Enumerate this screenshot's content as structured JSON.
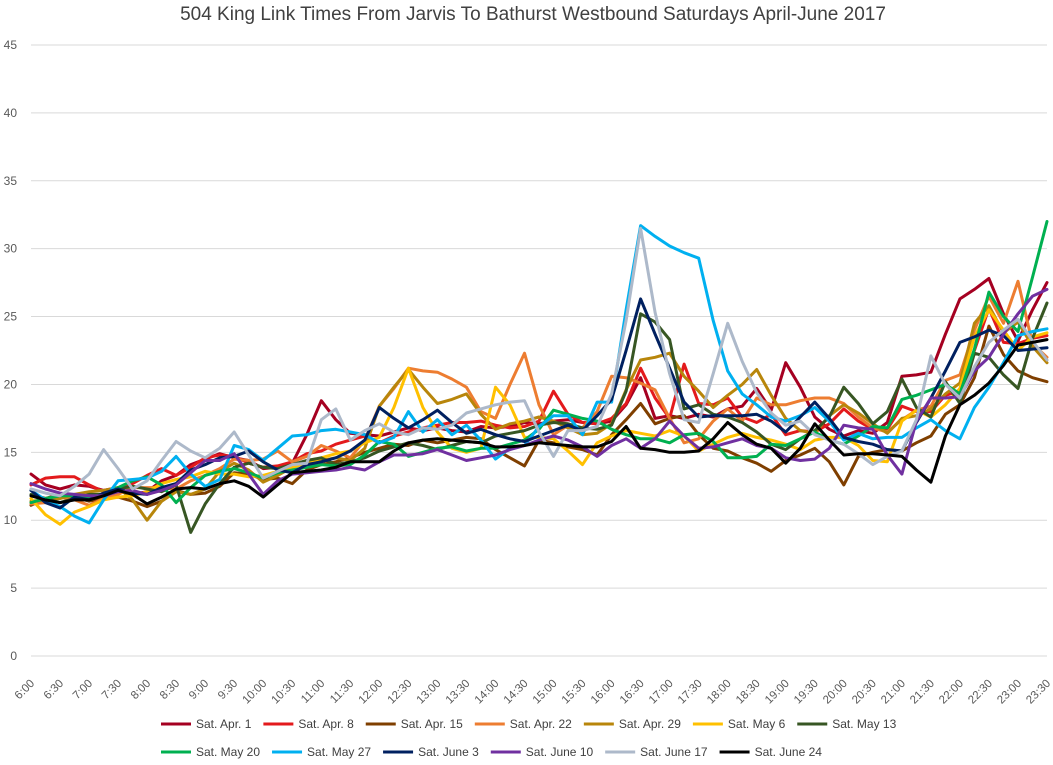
{
  "chart_data": {
    "type": "line",
    "title": "504 King Link Times From Jarvis To Bathurst Westbound Saturdays April-June 2017",
    "xlabel": "",
    "ylabel": "",
    "ylim": [
      0,
      45
    ],
    "yticks": [
      "0",
      "5",
      "10",
      "15",
      "20",
      "25",
      "30",
      "35",
      "40",
      "45"
    ],
    "grid": true,
    "legend_position": "bottom",
    "categories": [
      "6:00",
      "6:30",
      "7:00",
      "7:30",
      "8:00",
      "8:30",
      "9:00",
      "9:30",
      "10:00",
      "10:30",
      "11:00",
      "11:30",
      "12:00",
      "12:30",
      "13:00",
      "13:30",
      "14:00",
      "14:30",
      "15:00",
      "15:30",
      "16:00",
      "16:30",
      "17:00",
      "17:30",
      "18:00",
      "18:30",
      "19:00",
      "19:30",
      "20:00",
      "20:30",
      "21:00",
      "21:30",
      "22:00",
      "22:30",
      "23:00",
      "23:30"
    ],
    "x": [
      6.0,
      6.25,
      6.5,
      6.75,
      7.0,
      7.25,
      7.5,
      7.75,
      8.0,
      8.25,
      8.5,
      8.75,
      9.0,
      9.25,
      9.5,
      9.75,
      10.0,
      10.25,
      10.5,
      10.75,
      11.0,
      11.25,
      11.5,
      11.75,
      12.0,
      12.25,
      12.5,
      12.75,
      13.0,
      13.25,
      13.5,
      13.75,
      14.0,
      14.25,
      14.5,
      14.75,
      15.0,
      15.25,
      15.5,
      15.75,
      16.0,
      16.25,
      16.5,
      16.75,
      17.0,
      17.25,
      17.5,
      17.75,
      18.0,
      18.25,
      18.5,
      18.75,
      19.0,
      19.25,
      19.5,
      19.75,
      20.0,
      20.25,
      20.5,
      20.75,
      21.0,
      21.25,
      21.5,
      21.75,
      22.0,
      22.25,
      22.5,
      22.75,
      23.0,
      23.25,
      23.5
    ],
    "series": [
      {
        "name": "Sat. Apr. 1",
        "color": "#a50021",
        "values": [
          13.4,
          12.6,
          12.3,
          12.6,
          12.5,
          12.2,
          12.4,
          11.9,
          12.1,
          12.9,
          13.3,
          14.1,
          14.5,
          14.9,
          14.6,
          14.4,
          13.8,
          13.9,
          14.2,
          16.3,
          18.8,
          17.4,
          16.4,
          16.3,
          16.2,
          16.5,
          16.8,
          16.6,
          16.8,
          16.6,
          16.5,
          16.9,
          16.8,
          16.9,
          17.2,
          17.1,
          17.3,
          17.4,
          17.2,
          17.1,
          17.3,
          18.5,
          20.5,
          17.5,
          17.7,
          17.5,
          17.8,
          17.6,
          18.2,
          18.4,
          19.7,
          18.1,
          21.6,
          19.8,
          17.6,
          16.7,
          16.2,
          16.6,
          16.4,
          17.2,
          20.6,
          20.7,
          20.9,
          23.7,
          26.3,
          27.0,
          27.8,
          25.2,
          23.2,
          25.5,
          27.5
        ]
      },
      {
        "name": "Sat. Apr. 8",
        "color": "#e31a1c",
        "values": [
          12.6,
          13.1,
          13.2,
          13.2,
          12.6,
          12.1,
          12.2,
          12.7,
          13.3,
          13.8,
          13.3,
          13.9,
          14.6,
          14.8,
          14.7,
          14.2,
          13.9,
          14.0,
          14.3,
          14.9,
          15.1,
          15.6,
          15.9,
          16.2,
          15.7,
          16.2,
          16.5,
          16.8,
          17.0,
          17.2,
          17.2,
          17.3,
          17.0,
          16.8,
          16.9,
          17.3,
          19.5,
          17.8,
          17.2,
          17.1,
          17.5,
          18.6,
          21.2,
          19.0,
          17.5,
          21.5,
          18.6,
          18.5,
          19.0,
          17.6,
          17.2,
          17.8,
          16.3,
          16.6,
          16.5,
          17.1,
          18.2,
          17.3,
          16.7,
          16.7,
          18.4,
          18.0,
          18.0,
          19.2,
          19.5,
          22.5,
          25.6,
          23.1,
          23.0,
          23.4,
          23.6
        ]
      },
      {
        "name": "Sat. Apr. 15",
        "color": "#7f3f00",
        "values": [
          11.1,
          11.6,
          11.9,
          11.7,
          11.4,
          11.6,
          11.7,
          11.4,
          11.0,
          11.4,
          12.2,
          11.9,
          12.0,
          12.5,
          13.5,
          13.4,
          13.0,
          13.1,
          12.7,
          13.7,
          14.1,
          14.3,
          14.6,
          15.0,
          15.3,
          15.6,
          15.5,
          15.9,
          15.7,
          15.9,
          16.1,
          16.0,
          15.2,
          14.6,
          14.0,
          15.9,
          15.7,
          15.4,
          15.2,
          14.8,
          16.3,
          17.4,
          18.6,
          17.1,
          17.5,
          17.7,
          16.3,
          15.3,
          15.1,
          14.6,
          14.2,
          13.6,
          14.4,
          14.8,
          15.3,
          14.3,
          12.6,
          14.7,
          15.0,
          15.2,
          15.1,
          15.7,
          16.2,
          17.8,
          18.5,
          20.5,
          24.3,
          22.2,
          21.0,
          20.5,
          20.2
        ]
      },
      {
        "name": "Sat. Apr. 22",
        "color": "#ed7d31",
        "values": [
          11.2,
          11.3,
          11.7,
          11.5,
          11.1,
          11.6,
          11.9,
          12.4,
          12.4,
          12.4,
          12.3,
          12.9,
          13.3,
          13.8,
          14.5,
          14.4,
          14.5,
          15.1,
          14.3,
          14.7,
          15.5,
          15.1,
          14.6,
          15.9,
          18.4,
          19.7,
          21.2,
          21.0,
          20.9,
          20.4,
          19.8,
          18.0,
          17.5,
          20.0,
          22.3,
          18.5,
          16.3,
          17.0,
          16.8,
          18.0,
          20.6,
          20.5,
          20.1,
          19.6,
          17.5,
          15.7,
          16.0,
          17.3,
          18.2,
          17.3,
          19.0,
          18.5,
          18.5,
          18.8,
          19.0,
          19.0,
          18.6,
          17.6,
          16.8,
          16.5,
          17.4,
          18.1,
          18.4,
          20.3,
          20.7,
          24.0,
          26.5,
          24.5,
          27.6,
          23.0,
          22.0
        ]
      },
      {
        "name": "Sat. Apr. 29",
        "color": "#b8860b",
        "values": [
          11.4,
          11.5,
          11.6,
          11.9,
          12.1,
          12.2,
          12.4,
          11.5,
          10.0,
          11.4,
          12.1,
          11.9,
          12.3,
          13.6,
          14.2,
          13.7,
          12.8,
          13.3,
          13.9,
          14.3,
          14.4,
          14.6,
          14.4,
          15.3,
          18.4,
          19.8,
          21.1,
          19.8,
          18.6,
          18.9,
          19.3,
          17.8,
          16.7,
          17.1,
          17.3,
          17.6,
          17.3,
          16.8,
          16.3,
          16.4,
          17.1,
          19.6,
          21.8,
          22.0,
          22.3,
          20.6,
          19.5,
          18.3,
          19.2,
          20.0,
          21.1,
          19.2,
          17.5,
          16.6,
          16.4,
          17.7,
          18.5,
          17.9,
          17.1,
          16.4,
          17.5,
          17.7,
          18.2,
          19.3,
          20.1,
          24.5,
          25.8,
          23.8,
          24.6,
          22.8,
          21.6
        ]
      },
      {
        "name": "Sat. May 6",
        "color": "#ffc000",
        "values": [
          11.6,
          10.4,
          9.7,
          10.6,
          11.0,
          11.5,
          11.7,
          11.8,
          12.1,
          12.7,
          13.0,
          13.2,
          13.6,
          13.4,
          13.4,
          13.2,
          13.3,
          13.6,
          13.9,
          14.2,
          14.6,
          14.9,
          15.1,
          15.7,
          16.1,
          18.3,
          21.2,
          18.3,
          16.5,
          15.3,
          15.0,
          15.3,
          19.8,
          18.5,
          16.1,
          16.1,
          16.0,
          15.1,
          14.1,
          15.7,
          16.2,
          16.6,
          16.4,
          16.2,
          16.6,
          16.2,
          15.1,
          15.6,
          16.1,
          16.4,
          16.1,
          15.9,
          15.6,
          15.2,
          15.9,
          16.1,
          16.1,
          15.5,
          14.4,
          14.3,
          17.3,
          18.1,
          17.6,
          18.5,
          19.7,
          23.5,
          25.5,
          24.0,
          22.5,
          23.5,
          23.8
        ]
      },
      {
        "name": "Sat. May 13",
        "color": "#375623",
        "values": [
          11.9,
          11.6,
          11.3,
          11.6,
          11.9,
          11.9,
          12.3,
          12.5,
          12.3,
          12.1,
          12.6,
          9.1,
          11.2,
          12.7,
          13.9,
          14.2,
          13.9,
          13.8,
          14.1,
          14.4,
          14.6,
          14.1,
          14.3,
          14.6,
          15.1,
          15.4,
          15.7,
          15.5,
          15.2,
          15.5,
          15.8,
          15.7,
          16.2,
          16.4,
          16.6,
          17.0,
          17.2,
          17.1,
          16.8,
          16.7,
          17.0,
          19.5,
          25.2,
          24.6,
          23.3,
          18.2,
          18.5,
          17.8,
          17.6,
          17.2,
          16.5,
          15.6,
          15.2,
          16.0,
          16.6,
          17.6,
          19.8,
          18.6,
          17.1,
          18.0,
          20.4,
          18.3,
          17.6,
          20.2,
          18.6,
          22.3,
          22.0,
          20.7,
          19.7,
          23.4,
          26.0
        ]
      },
      {
        "name": "Sat. May 20",
        "color": "#00b050",
        "values": [
          11.3,
          11.6,
          11.8,
          11.8,
          11.7,
          11.9,
          12.4,
          12.9,
          13.2,
          12.6,
          11.3,
          12.4,
          13.3,
          13.6,
          13.8,
          13.5,
          13.1,
          13.5,
          13.7,
          13.9,
          14.1,
          14.0,
          14.1,
          14.8,
          15.8,
          15.6,
          14.7,
          15.0,
          15.3,
          15.4,
          15.1,
          15.3,
          15.3,
          15.6,
          15.9,
          16.7,
          18.1,
          17.8,
          17.5,
          17.3,
          16.7,
          16.3,
          16.0,
          16.0,
          15.7,
          16.3,
          16.4,
          15.8,
          14.6,
          14.6,
          14.7,
          15.6,
          15.5,
          16.0,
          16.5,
          15.9,
          15.6,
          16.2,
          16.9,
          16.8,
          18.9,
          19.2,
          19.6,
          20.0,
          19.3,
          22.6,
          26.8,
          25.0,
          23.9,
          27.9,
          32.0
        ]
      },
      {
        "name": "Sat. May 27",
        "color": "#00b0f0",
        "values": [
          12.2,
          11.5,
          11.0,
          10.3,
          9.8,
          11.5,
          12.9,
          13.0,
          13.1,
          13.6,
          14.7,
          13.4,
          12.5,
          13.0,
          15.5,
          15.2,
          14.4,
          15.3,
          16.2,
          16.3,
          16.6,
          16.7,
          16.5,
          16.3,
          15.7,
          16.1,
          18.0,
          16.5,
          17.4,
          16.3,
          17.0,
          15.9,
          14.5,
          15.3,
          15.5,
          16.9,
          17.7,
          17.7,
          16.3,
          18.7,
          18.7,
          25.5,
          31.7,
          30.9,
          30.2,
          29.7,
          29.3,
          24.7,
          21.0,
          19.3,
          18.5,
          17.6,
          17.3,
          17.7,
          18.3,
          17.3,
          15.9,
          16.4,
          16.0,
          16.1,
          16.1,
          16.8,
          17.4,
          16.6,
          16.0,
          18.3,
          19.8,
          21.6,
          23.6,
          23.9,
          24.1
        ]
      },
      {
        "name": "Sat. June 3",
        "color": "#002060",
        "values": [
          12.2,
          11.3,
          10.9,
          11.7,
          11.5,
          12.0,
          12.3,
          12.0,
          11.9,
          12.4,
          12.7,
          13.7,
          14.1,
          14.6,
          14.7,
          15.1,
          14.3,
          13.7,
          13.5,
          14.1,
          14.3,
          14.6,
          15.1,
          15.9,
          18.3,
          17.5,
          16.8,
          17.4,
          18.1,
          17.2,
          16.4,
          16.7,
          16.3,
          16.0,
          15.8,
          16.2,
          16.6,
          17.0,
          16.6,
          17.7,
          18.9,
          22.5,
          26.3,
          23.7,
          21.2,
          18.7,
          17.6,
          17.7,
          17.7,
          17.7,
          17.8,
          17.3,
          16.5,
          17.6,
          18.7,
          17.5,
          16.1,
          15.8,
          15.6,
          15.2,
          15.1,
          17.2,
          19.0,
          21.0,
          23.1,
          23.5,
          24.0,
          23.6,
          22.5,
          22.6,
          22.7
        ]
      },
      {
        "name": "Sat. June 10",
        "color": "#7030a0",
        "values": [
          12.7,
          12.3,
          12.0,
          11.9,
          11.8,
          11.8,
          12.1,
          12.2,
          11.9,
          12.2,
          12.6,
          13.5,
          14.4,
          14.4,
          14.9,
          13.4,
          11.9,
          12.9,
          13.4,
          13.5,
          13.6,
          13.7,
          13.9,
          13.7,
          14.3,
          14.8,
          14.8,
          14.9,
          15.2,
          14.8,
          14.4,
          14.6,
          14.8,
          15.2,
          15.5,
          15.9,
          16.2,
          15.9,
          15.4,
          14.7,
          15.5,
          16.0,
          15.3,
          16.0,
          17.3,
          16.2,
          15.3,
          15.4,
          15.7,
          16.0,
          15.5,
          15.3,
          14.6,
          14.4,
          14.5,
          15.3,
          17.0,
          16.8,
          16.7,
          14.8,
          13.4,
          17.3,
          19.0,
          19.0,
          19.1,
          21.0,
          22.0,
          23.7,
          25.2,
          26.5,
          27.0
        ]
      },
      {
        "name": "Sat. June 17",
        "color": "#adb9ca",
        "values": [
          12.3,
          12.0,
          11.8,
          12.5,
          13.4,
          15.2,
          13.8,
          12.3,
          12.9,
          14.4,
          15.8,
          15.1,
          14.6,
          15.3,
          16.5,
          14.8,
          13.1,
          13.6,
          14.1,
          14.2,
          17.4,
          18.2,
          15.9,
          16.6,
          17.1,
          16.5,
          16.3,
          16.8,
          16.7,
          17.0,
          17.9,
          18.2,
          18.5,
          18.7,
          18.8,
          16.5,
          14.7,
          16.6,
          16.6,
          16.9,
          19.3,
          24.7,
          31.5,
          25.3,
          20.8,
          17.4,
          17.2,
          20.8,
          24.5,
          21.7,
          19.4,
          17.9,
          17.0,
          17.3,
          16.3,
          15.9,
          15.6,
          14.9,
          14.1,
          14.7,
          15.1,
          17.4,
          22.1,
          20.0,
          19.0,
          21.3,
          23.1,
          24.0,
          24.8,
          23.2,
          21.8
        ]
      },
      {
        "name": "Sat. June 24",
        "color": "#000000",
        "values": [
          11.8,
          11.5,
          11.3,
          11.5,
          11.5,
          11.8,
          12.2,
          11.9,
          11.2,
          11.7,
          12.3,
          12.4,
          12.3,
          12.7,
          12.9,
          12.5,
          11.7,
          12.6,
          13.5,
          13.6,
          13.7,
          13.9,
          14.3,
          14.3,
          14.3,
          15.1,
          15.7,
          15.9,
          16.0,
          15.9,
          15.8,
          15.7,
          15.4,
          15.4,
          15.5,
          15.7,
          15.6,
          15.5,
          15.4,
          15.4,
          15.8,
          16.9,
          15.3,
          15.2,
          15.0,
          15.0,
          15.1,
          16.0,
          17.2,
          16.3,
          15.6,
          15.3,
          14.2,
          15.3,
          17.1,
          15.9,
          14.8,
          14.9,
          14.9,
          14.8,
          14.7,
          13.7,
          12.8,
          16.2,
          18.5,
          19.2,
          20.1,
          21.4,
          22.9,
          23.1,
          23.3
        ]
      }
    ]
  }
}
